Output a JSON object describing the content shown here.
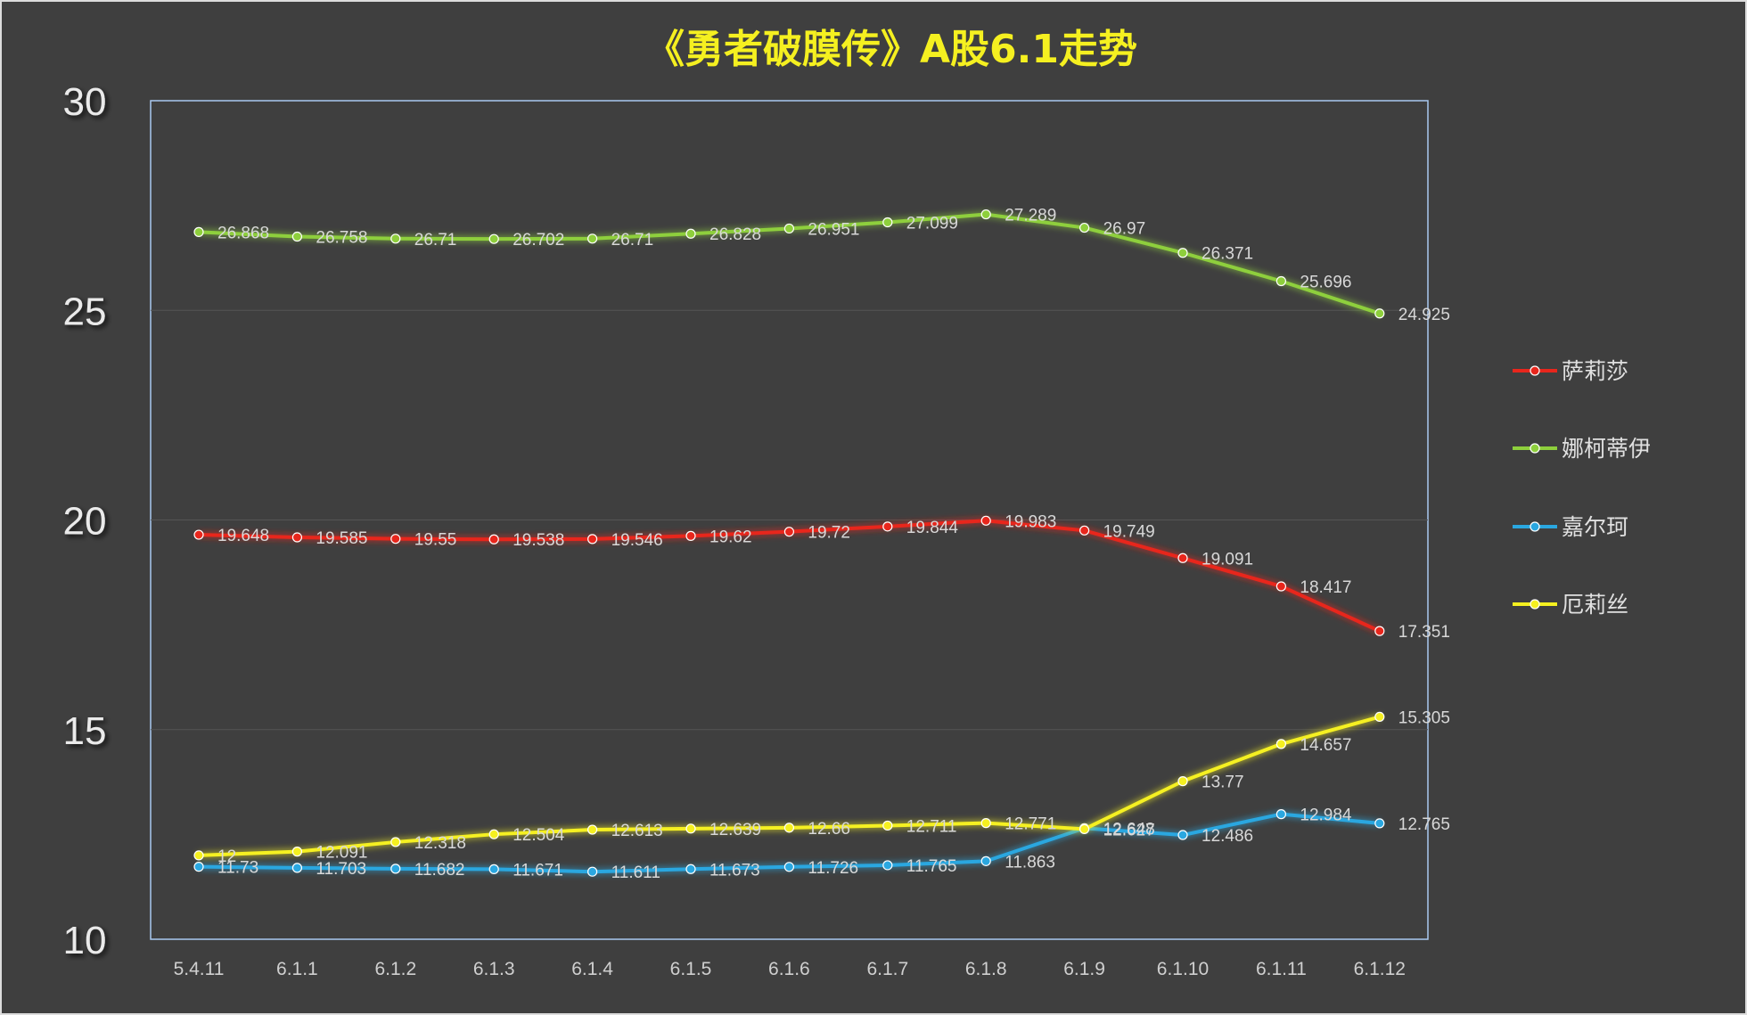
{
  "chart_data": {
    "type": "line",
    "title": "《勇者破膜传》A股6.1走势",
    "xlabel": "",
    "ylabel": "",
    "categories": [
      "5.4.11",
      "6.1.1",
      "6.1.2",
      "6.1.3",
      "6.1.4",
      "6.1.5",
      "6.1.6",
      "6.1.7",
      "6.1.8",
      "6.1.9",
      "6.1.10",
      "6.1.11",
      "6.1.12"
    ],
    "ylim": [
      10,
      30
    ],
    "yticks": [
      "10",
      "15",
      "20",
      "25",
      "30"
    ],
    "grid": true,
    "legend_position": "right",
    "series": [
      {
        "name": "萨莉莎",
        "color": "#e8261c",
        "values": [
          19.648,
          19.585,
          19.55,
          19.538,
          19.546,
          19.62,
          19.72,
          19.844,
          19.983,
          19.749,
          19.091,
          18.417,
          17.351
        ],
        "labels": [
          "19.648",
          "19.585",
          "19.55",
          "19.538",
          "19.546",
          "19.62",
          "19.72",
          "19.844",
          "19.983",
          "19.749",
          "19.091",
          "18.417",
          "17.351"
        ]
      },
      {
        "name": "娜柯蒂伊",
        "color": "#8ecf3c",
        "values": [
          26.868,
          26.758,
          26.71,
          26.702,
          26.71,
          26.828,
          26.951,
          27.099,
          27.289,
          26.97,
          26.371,
          25.696,
          24.925
        ],
        "labels": [
          "26.868",
          "26.758",
          "26.71",
          "26.702",
          "26.71",
          "26.828",
          "26.951",
          "27.099",
          "27.289",
          "26.97",
          "26.371",
          "25.696",
          "24.925"
        ]
      },
      {
        "name": "嘉尔珂",
        "color": "#2aa7e0",
        "values": [
          11.73,
          11.703,
          11.682,
          11.671,
          11.611,
          11.673,
          11.726,
          11.765,
          11.863,
          12.648,
          12.486,
          12.984,
          12.765
        ],
        "labels": [
          "11.73",
          "11.703",
          "11.682",
          "11.671",
          "11.611",
          "11.673",
          "11.726",
          "11.765",
          "11.863",
          "12.648",
          "12.486",
          "12.984",
          "12.765"
        ]
      },
      {
        "name": "厄莉丝",
        "color": "#f5f020",
        "values": [
          12,
          12.091,
          12.318,
          12.504,
          12.613,
          12.639,
          12.66,
          12.711,
          12.771,
          12.627,
          13.77,
          14.657,
          15.305
        ],
        "labels": [
          "12",
          "12.091",
          "12.318",
          "12.504",
          "12.613",
          "12.639",
          "12.66",
          "12.711",
          "12.771",
          "12.627",
          "13.77",
          "14.657",
          "15.305"
        ]
      }
    ]
  }
}
